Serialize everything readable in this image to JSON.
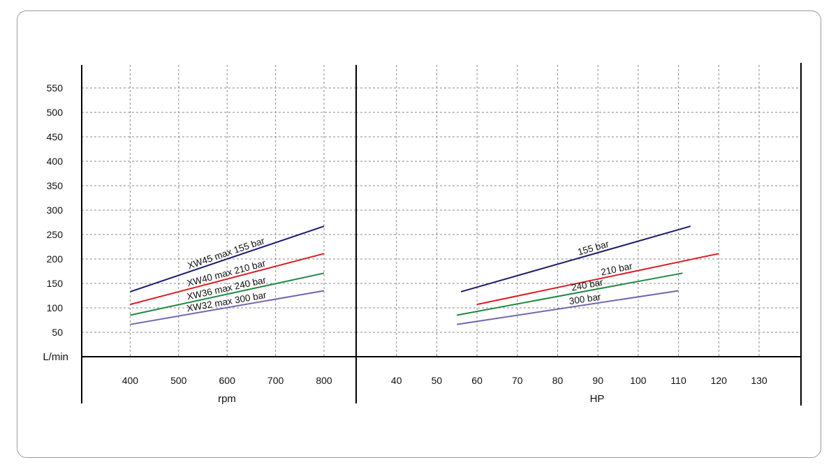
{
  "chart_data": [
    {
      "type": "line",
      "title": "",
      "xlabel": "rpm",
      "ylabel": "L/min",
      "x_ticks": [
        400,
        500,
        600,
        700,
        800
      ],
      "y_ticks": [
        50,
        100,
        150,
        200,
        250,
        300,
        350,
        400,
        450,
        500,
        550
      ],
      "xlim": [
        300,
        800
      ],
      "ylim": [
        0,
        550
      ],
      "grid": true,
      "series": [
        {
          "name": "XW45 max 155 bar",
          "color": "#1a1a6e",
          "x": [
            400,
            800
          ],
          "y": [
            133,
            267
          ]
        },
        {
          "name": "XW40 max 210 bar",
          "color": "#dd1c24",
          "x": [
            400,
            800
          ],
          "y": [
            107,
            211
          ]
        },
        {
          "name": "XW36 max 240 bar",
          "color": "#1e8a44",
          "x": [
            400,
            800
          ],
          "y": [
            85,
            171
          ]
        },
        {
          "name": "XW32 max 300 bar",
          "color": "#7066b0",
          "x": [
            400,
            800
          ],
          "y": [
            66,
            135
          ]
        }
      ]
    },
    {
      "type": "line",
      "title": "",
      "xlabel": "HP",
      "ylabel": "",
      "x_ticks": [
        40,
        50,
        60,
        70,
        80,
        90,
        100,
        110,
        120,
        130
      ],
      "xlim": [
        30,
        140
      ],
      "ylim": [
        0,
        550
      ],
      "grid": true,
      "series": [
        {
          "name": "155 bar",
          "color": "#1a1a6e",
          "x": [
            56,
            113
          ],
          "y": [
            133,
            267
          ]
        },
        {
          "name": "210 bar",
          "color": "#dd1c24",
          "x": [
            60,
            120
          ],
          "y": [
            107,
            211
          ]
        },
        {
          "name": "240 bar",
          "color": "#1e8a44",
          "x": [
            55,
            111
          ],
          "y": [
            85,
            171
          ]
        },
        {
          "name": "300 bar",
          "color": "#7066b0",
          "x": [
            55,
            110
          ],
          "y": [
            66,
            135
          ]
        }
      ]
    }
  ]
}
